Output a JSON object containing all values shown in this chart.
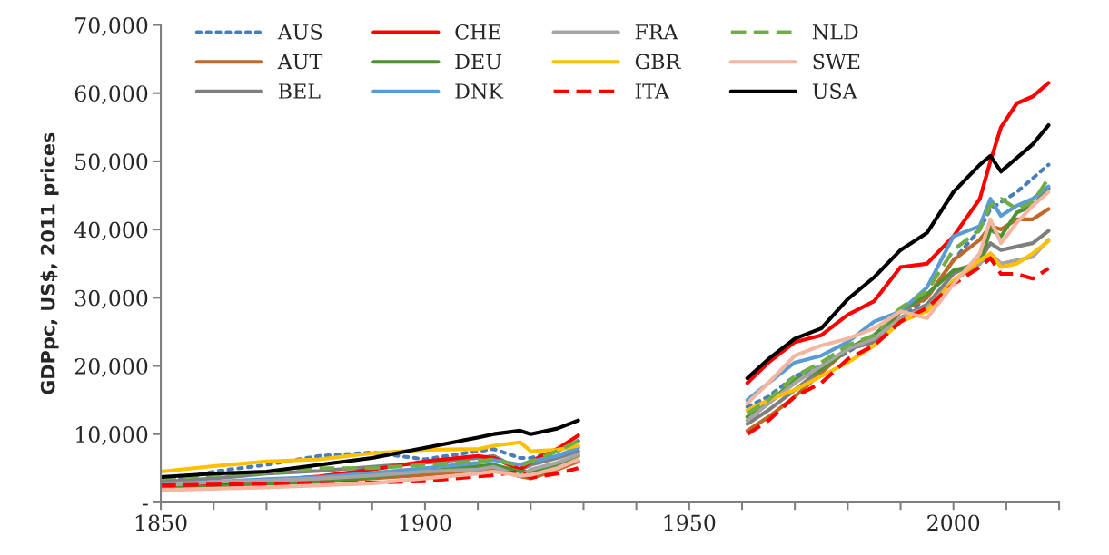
{
  "chart_data": {
    "type": "line",
    "ylabel": "GDPpc, US$, 2011 prices",
    "x": [
      1850,
      1860,
      1870,
      1880,
      1890,
      1900,
      1910,
      1913,
      1918,
      1920,
      1925,
      1929,
      1945,
      1961,
      1965,
      1970,
      1975,
      1980,
      1985,
      1990,
      1995,
      2000,
      2005,
      2007,
      2009,
      2012,
      2015,
      2018
    ],
    "series": [
      {
        "name": "AUS",
        "color": "#4a7ebb",
        "line_style": "dotted",
        "values": [
          3000,
          4500,
          5500,
          6800,
          7300,
          6300,
          7500,
          7800,
          6500,
          6500,
          7500,
          9000,
          null,
          14000,
          15500,
          18500,
          20000,
          22000,
          24500,
          27000,
          30000,
          35500,
          40000,
          43000,
          44000,
          45500,
          47500,
          49500
        ]
      },
      {
        "name": "AUT",
        "color": "#c0692b",
        "line_style": "solid",
        "values": [
          2300,
          2500,
          2800,
          3000,
          3500,
          4000,
          4700,
          5000,
          3800,
          3500,
          4800,
          6000,
          null,
          10500,
          12500,
          15500,
          19000,
          22500,
          23500,
          28000,
          30000,
          35500,
          38500,
          40500,
          40000,
          41500,
          41500,
          43000
        ]
      },
      {
        "name": "BEL",
        "color": "#7f7f7f",
        "line_style": "solid",
        "values": [
          3000,
          3500,
          4200,
          4600,
          5200,
          5800,
          6500,
          6800,
          4800,
          5500,
          6500,
          7500,
          null,
          11500,
          13500,
          16500,
          19500,
          22500,
          23500,
          27000,
          29000,
          33500,
          35500,
          38000,
          37000,
          37500,
          38000,
          39800
        ]
      },
      {
        "name": "CHE",
        "color": "#ff0000",
        "line_style": "solid",
        "values": [
          2500,
          2800,
          3200,
          3800,
          4800,
          6000,
          6800,
          6500,
          4800,
          6000,
          7800,
          9800,
          null,
          17500,
          20500,
          23500,
          24500,
          27500,
          29500,
          34500,
          35000,
          39000,
          44500,
          50000,
          55000,
          58500,
          59500,
          61500
        ]
      },
      {
        "name": "DEU",
        "color": "#4f9132",
        "line_style": "solid",
        "values": [
          2000,
          2300,
          2700,
          3000,
          3700,
          4500,
          5300,
          5500,
          4500,
          4500,
          5300,
          6800,
          null,
          12500,
          14500,
          18000,
          19500,
          22500,
          24500,
          28000,
          30500,
          34000,
          35000,
          40000,
          39000,
          42500,
          43500,
          46000
        ]
      },
      {
        "name": "DNK",
        "color": "#5b9bd5",
        "line_style": "solid",
        "values": [
          2800,
          3000,
          3400,
          3700,
          4300,
          5000,
          5800,
          6200,
          5500,
          6000,
          6800,
          8000,
          null,
          15000,
          17500,
          20500,
          21500,
          23500,
          26500,
          28000,
          31500,
          39000,
          40500,
          44500,
          42000,
          43500,
          44500,
          46300
        ]
      },
      {
        "name": "FRA",
        "color": "#a5a5a5",
        "line_style": "solid",
        "values": [
          2500,
          3000,
          3200,
          3500,
          3900,
          4500,
          4800,
          5200,
          3800,
          4800,
          5800,
          7000,
          null,
          12000,
          14500,
          17500,
          20000,
          22500,
          24000,
          27000,
          28500,
          32500,
          35000,
          36500,
          35000,
          35500,
          36000,
          38500
        ]
      },
      {
        "name": "GBR",
        "color": "#ffc000",
        "line_style": "solid",
        "values": [
          4500,
          5300,
          6000,
          6300,
          7200,
          7700,
          7800,
          8300,
          8800,
          7500,
          7700,
          8300,
          null,
          13500,
          15000,
          16500,
          18500,
          20500,
          23000,
          26500,
          28000,
          32500,
          35500,
          36500,
          34500,
          35000,
          36500,
          38300
        ]
      },
      {
        "name": "ITA",
        "color": "#ff0000",
        "line_style": "dashed",
        "values": [
          2500,
          2600,
          2700,
          2800,
          2900,
          3100,
          3800,
          4000,
          4500,
          3600,
          4200,
          5000,
          null,
          10000,
          12000,
          15500,
          17500,
          21000,
          23000,
          26500,
          28500,
          32000,
          34500,
          35800,
          33500,
          33500,
          32800,
          34300
        ]
      },
      {
        "name": "NLD",
        "color": "#70ad47",
        "line_style": "dashed",
        "values": [
          3500,
          4000,
          4300,
          5000,
          5000,
          5500,
          6000,
          6300,
          5300,
          6000,
          7500,
          9000,
          null,
          13000,
          15000,
          18500,
          20500,
          23000,
          24500,
          28500,
          31000,
          37000,
          40000,
          43500,
          44500,
          43000,
          44000,
          47500
        ]
      },
      {
        "name": "SWE",
        "color": "#f4b6a0",
        "line_style": "solid",
        "values": [
          1800,
          2000,
          2200,
          2500,
          2800,
          3500,
          4200,
          4500,
          3900,
          4000,
          5000,
          6300,
          null,
          14500,
          17500,
          21500,
          23000,
          24000,
          25500,
          28000,
          27000,
          32000,
          36500,
          41500,
          38000,
          41000,
          43500,
          45500
        ]
      },
      {
        "name": "USA",
        "color": "#000000",
        "line_style": "solid",
        "values": [
          3700,
          4200,
          4500,
          5500,
          6500,
          8000,
          9500,
          10000,
          10500,
          10000,
          10800,
          12000,
          null,
          18200,
          21000,
          24000,
          25500,
          29800,
          33000,
          37000,
          39500,
          45500,
          49500,
          50800,
          48500,
          50500,
          52500,
          55300
        ]
      }
    ],
    "xlim": [
      1850,
      2020
    ],
    "xticks": [
      1850,
      {
        "value": 1860,
        "label": null
      },
      {
        "value": 1870,
        "label": null
      },
      {
        "value": 1880,
        "label": null
      },
      {
        "value": 1890,
        "label": null
      },
      1900,
      {
        "value": 1910,
        "label": null
      },
      {
        "value": 1920,
        "label": null
      },
      {
        "value": 1930,
        "label": null
      },
      {
        "value": 1940,
        "label": null
      },
      1950,
      {
        "value": 1960,
        "label": null
      },
      {
        "value": 1970,
        "label": null
      },
      {
        "value": 1980,
        "label": null
      },
      {
        "value": 1990,
        "label": null
      },
      2000,
      {
        "value": 2010,
        "label": null
      },
      {
        "value": 2020,
        "label": null
      }
    ],
    "ylim": [
      0,
      70000
    ],
    "yticks": [
      {
        "value": 0,
        "label": "-"
      },
      {
        "value": 10000,
        "label": "10,000"
      },
      {
        "value": 20000,
        "label": "20,000"
      },
      {
        "value": 30000,
        "label": "30,000"
      },
      {
        "value": 40000,
        "label": "40,000"
      },
      {
        "value": 50000,
        "label": "50,000"
      },
      {
        "value": 60000,
        "label": "60,000"
      },
      {
        "value": 70000,
        "label": "70,000"
      }
    ],
    "grid": false,
    "legend": "top left"
  }
}
